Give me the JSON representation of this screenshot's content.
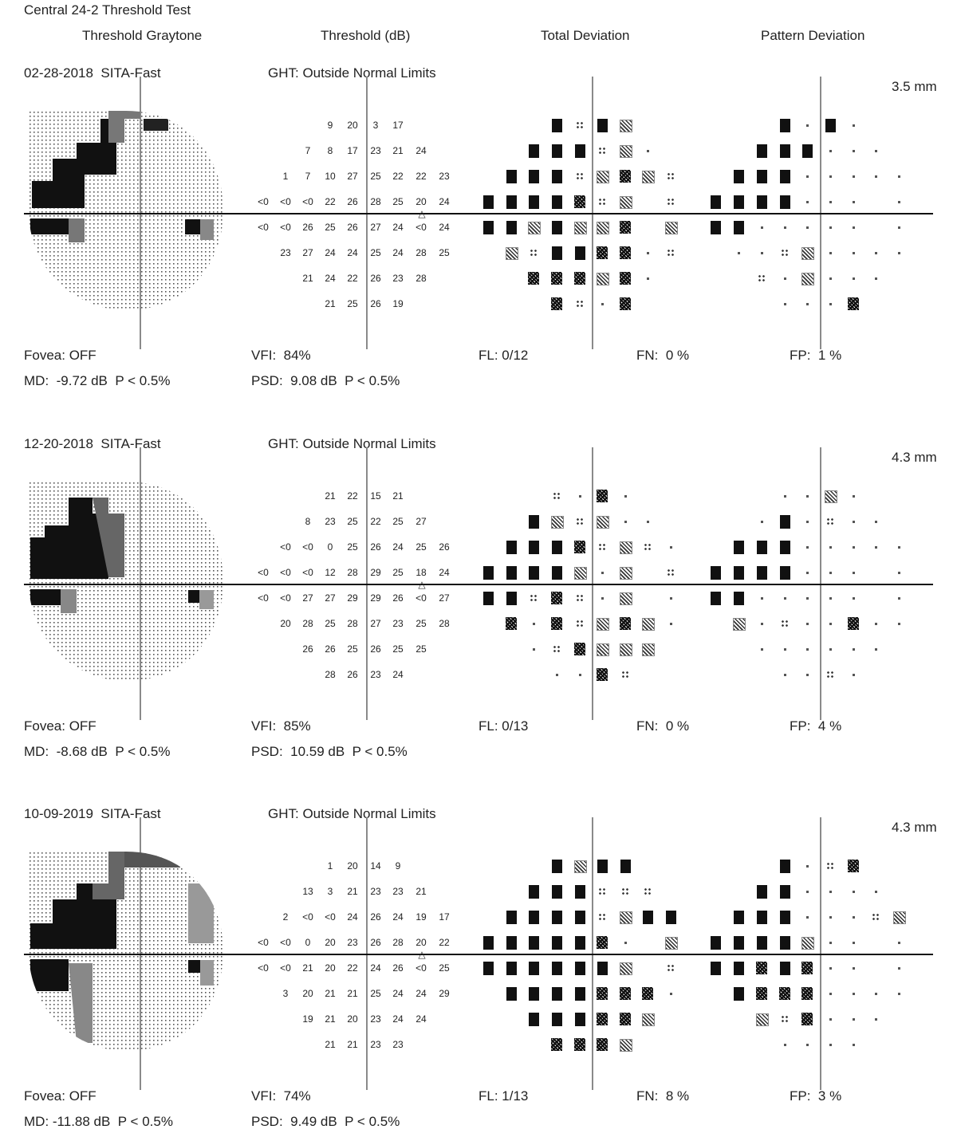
{
  "report": {
    "title": "Central 24-2 Threshold Test",
    "columns": [
      "Threshold Graytone",
      "Threshold (dB)",
      "Total Deviation",
      "Pattern Deviation"
    ]
  },
  "tests": [
    {
      "date_strategy": "02-28-2018  SITA-Fast",
      "ght": "GHT: Outside Normal Limits",
      "pupil": "3.5 mm",
      "fovea": "Fovea: OFF",
      "md": "MD:  -9.72 dB  P < 0.5%",
      "vfi": "VFI:  84%",
      "psd": "PSD:  9.08 dB  P < 0.5%",
      "fl": "FL: 0/12",
      "fn": "FN:  0 %",
      "fp": "FP:  1 %",
      "threshold_rows": [
        [
          "",
          "",
          "",
          "9",
          "20",
          "3",
          "17",
          "",
          "",
          ""
        ],
        [
          "",
          "",
          "7",
          "8",
          "17",
          "23",
          "21",
          "24",
          "",
          ""
        ],
        [
          "",
          "1",
          "7",
          "10",
          "27",
          "25",
          "22",
          "22",
          "23",
          ""
        ],
        [
          "<0",
          "<0",
          "<0",
          "22",
          "26",
          "28",
          "25",
          "20",
          "24",
          ""
        ],
        [
          "<0",
          "<0",
          "26",
          "25",
          "26",
          "27",
          "24",
          "<0",
          "24",
          ""
        ],
        [
          "",
          "23",
          "27",
          "24",
          "24",
          "25",
          "24",
          "28",
          "25",
          ""
        ],
        [
          "",
          "",
          "21",
          "24",
          "22",
          "26",
          "23",
          "28",
          "",
          ""
        ],
        [
          "",
          "",
          "",
          "21",
          "25",
          "26",
          "19",
          "",
          "",
          ""
        ]
      ],
      "td_rows": [
        [
          "",
          "",
          "",
          "B",
          "Q",
          "B",
          "C",
          "",
          "",
          ""
        ],
        [
          "",
          "",
          "B",
          "B",
          "B",
          "Q",
          "C",
          "D",
          "",
          ""
        ],
        [
          "",
          "B",
          "B",
          "B",
          "Q",
          "C",
          "X",
          "C",
          "Q",
          ""
        ],
        [
          "B",
          "B",
          "B",
          "B",
          "X",
          "Q",
          "C",
          "",
          "Q",
          ""
        ],
        [
          "B",
          "B",
          "C",
          "B",
          "C",
          "C",
          "X",
          "",
          "C",
          ""
        ],
        [
          "",
          "C",
          "Q",
          "B",
          "B",
          "X",
          "X",
          "D",
          "Q",
          ""
        ],
        [
          "",
          "",
          "X",
          "X",
          "X",
          "C",
          "X",
          "D",
          "",
          ""
        ],
        [
          "",
          "",
          "",
          "X",
          "Q",
          "D",
          "X",
          "",
          "",
          ""
        ]
      ],
      "pd_rows": [
        [
          "",
          "",
          "",
          "B",
          "D",
          "B",
          "D",
          "",
          "",
          ""
        ],
        [
          "",
          "",
          "B",
          "B",
          "B",
          "D",
          "D",
          "D",
          "",
          ""
        ],
        [
          "",
          "B",
          "B",
          "B",
          "D",
          "D",
          "D",
          "D",
          "D",
          ""
        ],
        [
          "B",
          "B",
          "B",
          "B",
          "D",
          "D",
          "D",
          "",
          "D",
          ""
        ],
        [
          "B",
          "B",
          "D",
          "D",
          "D",
          "D",
          "D",
          "",
          "D",
          ""
        ],
        [
          "",
          "D",
          "D",
          "Q",
          "C",
          "D",
          "D",
          "D",
          "D",
          ""
        ],
        [
          "",
          "",
          "Q",
          "D",
          "C",
          "D",
          "D",
          "D",
          "",
          ""
        ],
        [
          "",
          "",
          "",
          "D",
          "D",
          "D",
          "X",
          "",
          "",
          ""
        ]
      ]
    },
    {
      "date_strategy": "12-20-2018  SITA-Fast",
      "ght": "GHT: Outside Normal Limits",
      "pupil": "4.3 mm",
      "fovea": "Fovea: OFF",
      "md": "MD:  -8.68 dB  P < 0.5%",
      "vfi": "VFI:  85%",
      "psd": "PSD:  10.59 dB  P < 0.5%",
      "fl": "FL: 0/13",
      "fn": "FN:  0 %",
      "fp": "FP:  4 %",
      "threshold_rows": [
        [
          "",
          "",
          "",
          "21",
          "22",
          "15",
          "21",
          "",
          "",
          ""
        ],
        [
          "",
          "",
          "8",
          "23",
          "25",
          "22",
          "25",
          "27",
          "",
          ""
        ],
        [
          "",
          "<0",
          "<0",
          "0",
          "25",
          "26",
          "24",
          "25",
          "26",
          ""
        ],
        [
          "<0",
          "<0",
          "<0",
          "12",
          "28",
          "29",
          "25",
          "18",
          "24",
          ""
        ],
        [
          "<0",
          "<0",
          "27",
          "27",
          "29",
          "29",
          "26",
          "<0",
          "27",
          ""
        ],
        [
          "",
          "20",
          "28",
          "25",
          "28",
          "27",
          "23",
          "25",
          "28",
          ""
        ],
        [
          "",
          "",
          "26",
          "26",
          "25",
          "26",
          "25",
          "25",
          "",
          ""
        ],
        [
          "",
          "",
          "",
          "28",
          "26",
          "23",
          "24",
          "",
          "",
          ""
        ]
      ],
      "td_rows": [
        [
          "",
          "",
          "",
          "Q",
          "D",
          "X",
          "D",
          "",
          "",
          ""
        ],
        [
          "",
          "",
          "B",
          "C",
          "Q",
          "C",
          "D",
          "D",
          "",
          ""
        ],
        [
          "",
          "B",
          "B",
          "B",
          "X",
          "Q",
          "C",
          "Q",
          "D",
          ""
        ],
        [
          "B",
          "B",
          "B",
          "B",
          "C",
          "D",
          "C",
          "",
          "Q",
          ""
        ],
        [
          "B",
          "B",
          "Q",
          "X",
          "Q",
          "D",
          "C",
          "",
          "D",
          ""
        ],
        [
          "",
          "X",
          "D",
          "X",
          "Q",
          "C",
          "X",
          "C",
          "D",
          ""
        ],
        [
          "",
          "",
          "D",
          "Q",
          "X",
          "C",
          "C",
          "C",
          "",
          ""
        ],
        [
          "",
          "",
          "",
          "D",
          "D",
          "X",
          "Q",
          "",
          "",
          ""
        ]
      ],
      "pd_rows": [
        [
          "",
          "",
          "",
          "D",
          "D",
          "C",
          "D",
          "",
          "",
          ""
        ],
        [
          "",
          "",
          "D",
          "B",
          "D",
          "Q",
          "D",
          "D",
          "",
          ""
        ],
        [
          "",
          "B",
          "B",
          "B",
          "D",
          "D",
          "D",
          "D",
          "D",
          ""
        ],
        [
          "B",
          "B",
          "B",
          "B",
          "D",
          "D",
          "D",
          "",
          "D",
          ""
        ],
        [
          "B",
          "B",
          "D",
          "D",
          "D",
          "D",
          "D",
          "",
          "D",
          ""
        ],
        [
          "",
          "C",
          "D",
          "Q",
          "D",
          "D",
          "X",
          "D",
          "D",
          ""
        ],
        [
          "",
          "",
          "D",
          "D",
          "D",
          "D",
          "D",
          "D",
          "",
          ""
        ],
        [
          "",
          "",
          "",
          "D",
          "D",
          "Q",
          "D",
          "",
          "",
          ""
        ]
      ]
    },
    {
      "date_strategy": "10-09-2019  SITA-Fast",
      "ght": "GHT: Outside Normal Limits",
      "pupil": "4.3 mm",
      "fovea": "Fovea: OFF",
      "md": "MD: -11.88 dB  P < 0.5%",
      "vfi": "VFI:  74%",
      "psd": "PSD:  9.49 dB  P < 0.5%",
      "fl": "FL: 1/13",
      "fn": "FN:  8 %",
      "fp": "FP:  3 %",
      "threshold_rows": [
        [
          "",
          "",
          "",
          "1",
          "20",
          "14",
          "9",
          "",
          "",
          ""
        ],
        [
          "",
          "",
          "13",
          "3",
          "21",
          "23",
          "23",
          "21",
          "",
          ""
        ],
        [
          "",
          "2",
          "<0",
          "<0",
          "24",
          "26",
          "24",
          "19",
          "17",
          ""
        ],
        [
          "<0",
          "<0",
          "0",
          "20",
          "23",
          "26",
          "28",
          "20",
          "22",
          ""
        ],
        [
          "<0",
          "<0",
          "21",
          "20",
          "22",
          "24",
          "26",
          "<0",
          "25",
          ""
        ],
        [
          "",
          "3",
          "20",
          "21",
          "21",
          "25",
          "24",
          "24",
          "29",
          ""
        ],
        [
          "",
          "",
          "19",
          "21",
          "20",
          "23",
          "24",
          "24",
          "",
          ""
        ],
        [
          "",
          "",
          "",
          "21",
          "21",
          "23",
          "23",
          "",
          "",
          ""
        ]
      ],
      "td_rows": [
        [
          "",
          "",
          "",
          "B",
          "C",
          "B",
          "B",
          "",
          "",
          ""
        ],
        [
          "",
          "",
          "B",
          "B",
          "B",
          "Q",
          "Q",
          "Q",
          "",
          ""
        ],
        [
          "",
          "B",
          "B",
          "B",
          "B",
          "Q",
          "C",
          "B",
          "B",
          ""
        ],
        [
          "B",
          "B",
          "B",
          "B",
          "B",
          "X",
          "D",
          "",
          "C",
          ""
        ],
        [
          "B",
          "B",
          "B",
          "B",
          "B",
          "B",
          "C",
          "",
          "Q",
          ""
        ],
        [
          "",
          "B",
          "B",
          "B",
          "B",
          "X",
          "X",
          "X",
          "D",
          ""
        ],
        [
          "",
          "",
          "B",
          "B",
          "B",
          "X",
          "X",
          "C",
          "",
          ""
        ],
        [
          "",
          "",
          "",
          "X",
          "X",
          "X",
          "C",
          "",
          "",
          ""
        ]
      ],
      "pd_rows": [
        [
          "",
          "",
          "",
          "B",
          "D",
          "Q",
          "X",
          "",
          "",
          ""
        ],
        [
          "",
          "",
          "B",
          "B",
          "D",
          "D",
          "D",
          "D",
          "",
          ""
        ],
        [
          "",
          "B",
          "B",
          "B",
          "D",
          "D",
          "D",
          "Q",
          "C",
          ""
        ],
        [
          "B",
          "B",
          "B",
          "B",
          "C",
          "D",
          "D",
          "",
          "D",
          ""
        ],
        [
          "B",
          "B",
          "X",
          "B",
          "X",
          "D",
          "D",
          "",
          "D",
          ""
        ],
        [
          "",
          "B",
          "X",
          "X",
          "X",
          "D",
          "D",
          "D",
          "D",
          ""
        ],
        [
          "",
          "",
          "C",
          "Q",
          "X",
          "D",
          "D",
          "D",
          "",
          ""
        ],
        [
          "",
          "",
          "",
          "D",
          "D",
          "D",
          "D",
          "",
          "",
          ""
        ]
      ]
    }
  ],
  "legend_symbols": {
    "B": "black-square-icon",
    "X": "dense-hatch-icon",
    "C": "cross-hatch-icon",
    "Q": "four-dot-icon",
    "D": "single-dot-icon"
  }
}
